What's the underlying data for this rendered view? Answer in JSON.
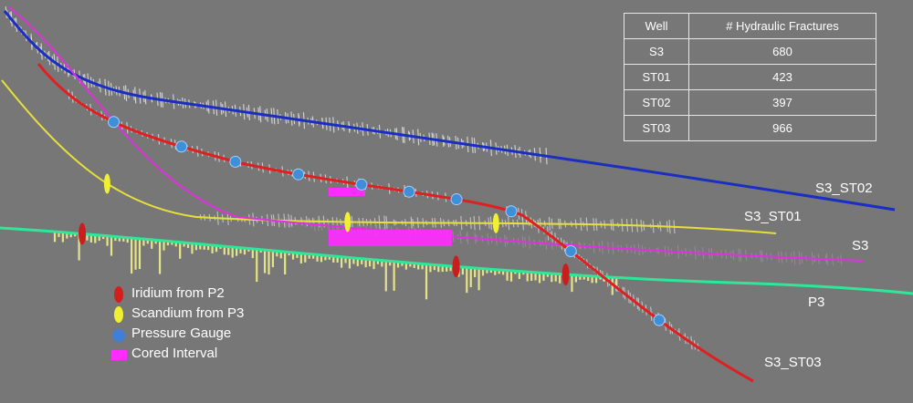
{
  "table": {
    "headers": [
      "Well",
      "# Hydraulic Fractures"
    ],
    "rows": [
      {
        "well": "S3",
        "fractures": "680"
      },
      {
        "well": "ST01",
        "fractures": "423"
      },
      {
        "well": "ST02",
        "fractures": "397"
      },
      {
        "well": "ST03",
        "fractures": "966"
      }
    ]
  },
  "wells": [
    {
      "name": "S3_ST02",
      "color": "#1a2ec4"
    },
    {
      "name": "S3_ST01",
      "color": "#e8e03a"
    },
    {
      "name": "S3",
      "color": "#e030e0"
    },
    {
      "name": "P3",
      "color": "#2ee89a"
    },
    {
      "name": "S3_ST03",
      "color": "#e02020"
    }
  ],
  "legend": [
    {
      "label": "Iridium from P2",
      "color": "#d41e1e",
      "icon": "red-ellipse-icon"
    },
    {
      "label": "Scandium from P3",
      "color": "#f0f030",
      "icon": "yellow-ellipse-icon"
    },
    {
      "label": "Pressure Gauge",
      "color": "#3f7fd8",
      "icon": "blue-circle-icon"
    },
    {
      "label": "Cored Interval",
      "color": "#ff2cff",
      "icon": "magenta-rect-icon"
    }
  ]
}
